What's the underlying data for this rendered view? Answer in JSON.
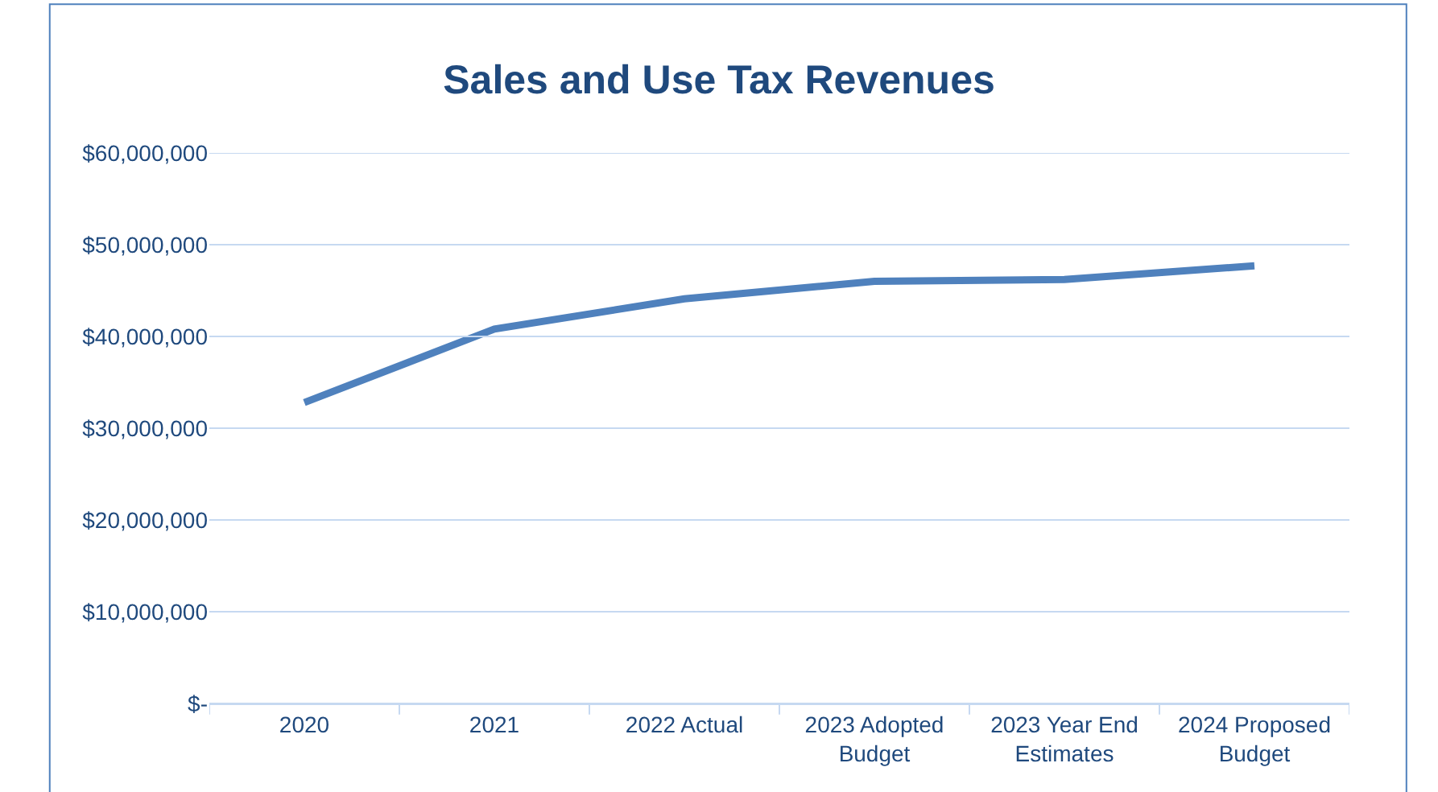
{
  "chart_data": {
    "type": "line",
    "title": "Sales and Use Tax Revenues",
    "categories": [
      "2020",
      "2021",
      "2022 Actual",
      "2023 Adopted Budget",
      "2023 Year End Estimates",
      "2024 Proposed Budget"
    ],
    "series": [
      {
        "color": "#4f81bd",
        "values": [
          32800000,
          40800000,
          44100000,
          46000000,
          46200000,
          47700000
        ]
      }
    ],
    "ylim": [
      0,
      60000000
    ],
    "yticks": [
      {
        "value": 0,
        "label": "$-"
      },
      {
        "value": 10000000,
        "label": "$10,000,000"
      },
      {
        "value": 20000000,
        "label": "$20,000,000"
      },
      {
        "value": 30000000,
        "label": "$30,000,000"
      },
      {
        "value": 40000000,
        "label": "$40,000,000"
      },
      {
        "value": 50000000,
        "label": "$50,000,000"
      },
      {
        "value": 60000000,
        "label": "$60,000,000"
      }
    ],
    "grid": "y",
    "marker": "none",
    "line_style": "solid"
  }
}
